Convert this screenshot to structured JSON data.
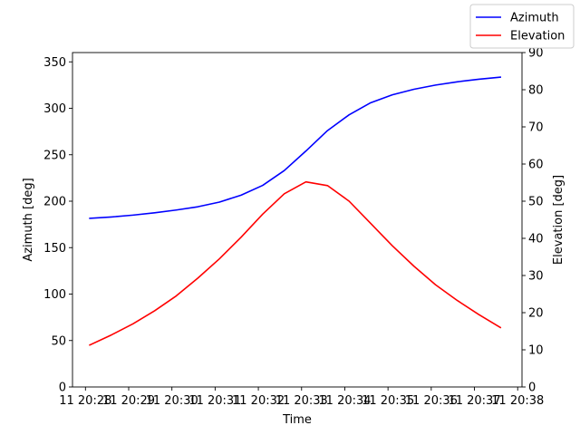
{
  "chart_data": {
    "type": "line",
    "xlabel": "Time",
    "ylabel": "Azimuth [deg]",
    "ylabel_right": "Elevation [deg]",
    "x_tick_labels": [
      "11 20:28",
      "11 20:29",
      "11 20:30",
      "11 20:31",
      "11 20:32",
      "11 20:33",
      "11 20:34",
      "11 20:35",
      "11 20:36",
      "11 20:37",
      "11 20:38"
    ],
    "x_tick_minutes": [
      28,
      29,
      30,
      31,
      32,
      33,
      34,
      35,
      36,
      37,
      38
    ],
    "x_display_range_minutes": [
      27.7,
      38.1
    ],
    "ylim_left": [
      0,
      360
    ],
    "ylim_right": [
      0,
      90
    ],
    "y_ticks_left": [
      0,
      50,
      100,
      150,
      200,
      250,
      300,
      350
    ],
    "y_ticks_right": [
      0,
      10,
      20,
      30,
      40,
      50,
      60,
      70,
      80,
      90
    ],
    "legend_position": "top-right",
    "series": [
      {
        "name": "Azimuth",
        "axis": "left",
        "color": "#0000ff",
        "x": [
          28.1,
          28.6,
          29.1,
          29.6,
          30.1,
          30.6,
          31.1,
          31.6,
          32.1,
          32.6,
          33.1,
          33.6,
          34.1,
          34.6,
          35.1,
          35.6,
          36.1,
          36.6,
          37.1,
          37.6
        ],
        "values": [
          181.5,
          183,
          185,
          187.5,
          190.5,
          194,
          199,
          206.5,
          217,
          233,
          254,
          276,
          293,
          306,
          314.5,
          320.5,
          325,
          328.5,
          331.3,
          333.5
        ]
      },
      {
        "name": "Elevation",
        "axis": "right",
        "color": "#ff0000",
        "x": [
          28.1,
          28.6,
          29.1,
          29.6,
          30.1,
          30.6,
          31.1,
          31.6,
          32.1,
          32.6,
          33.1,
          33.6,
          34.1,
          34.6,
          35.1,
          35.6,
          36.1,
          36.6,
          37.1,
          37.6
        ],
        "values": [
          11.3,
          14,
          17,
          20.5,
          24.5,
          29.3,
          34.5,
          40.3,
          46.5,
          52,
          55.2,
          54.2,
          50,
          44,
          38,
          32.5,
          27.5,
          23.3,
          19.5,
          16
        ]
      }
    ]
  }
}
